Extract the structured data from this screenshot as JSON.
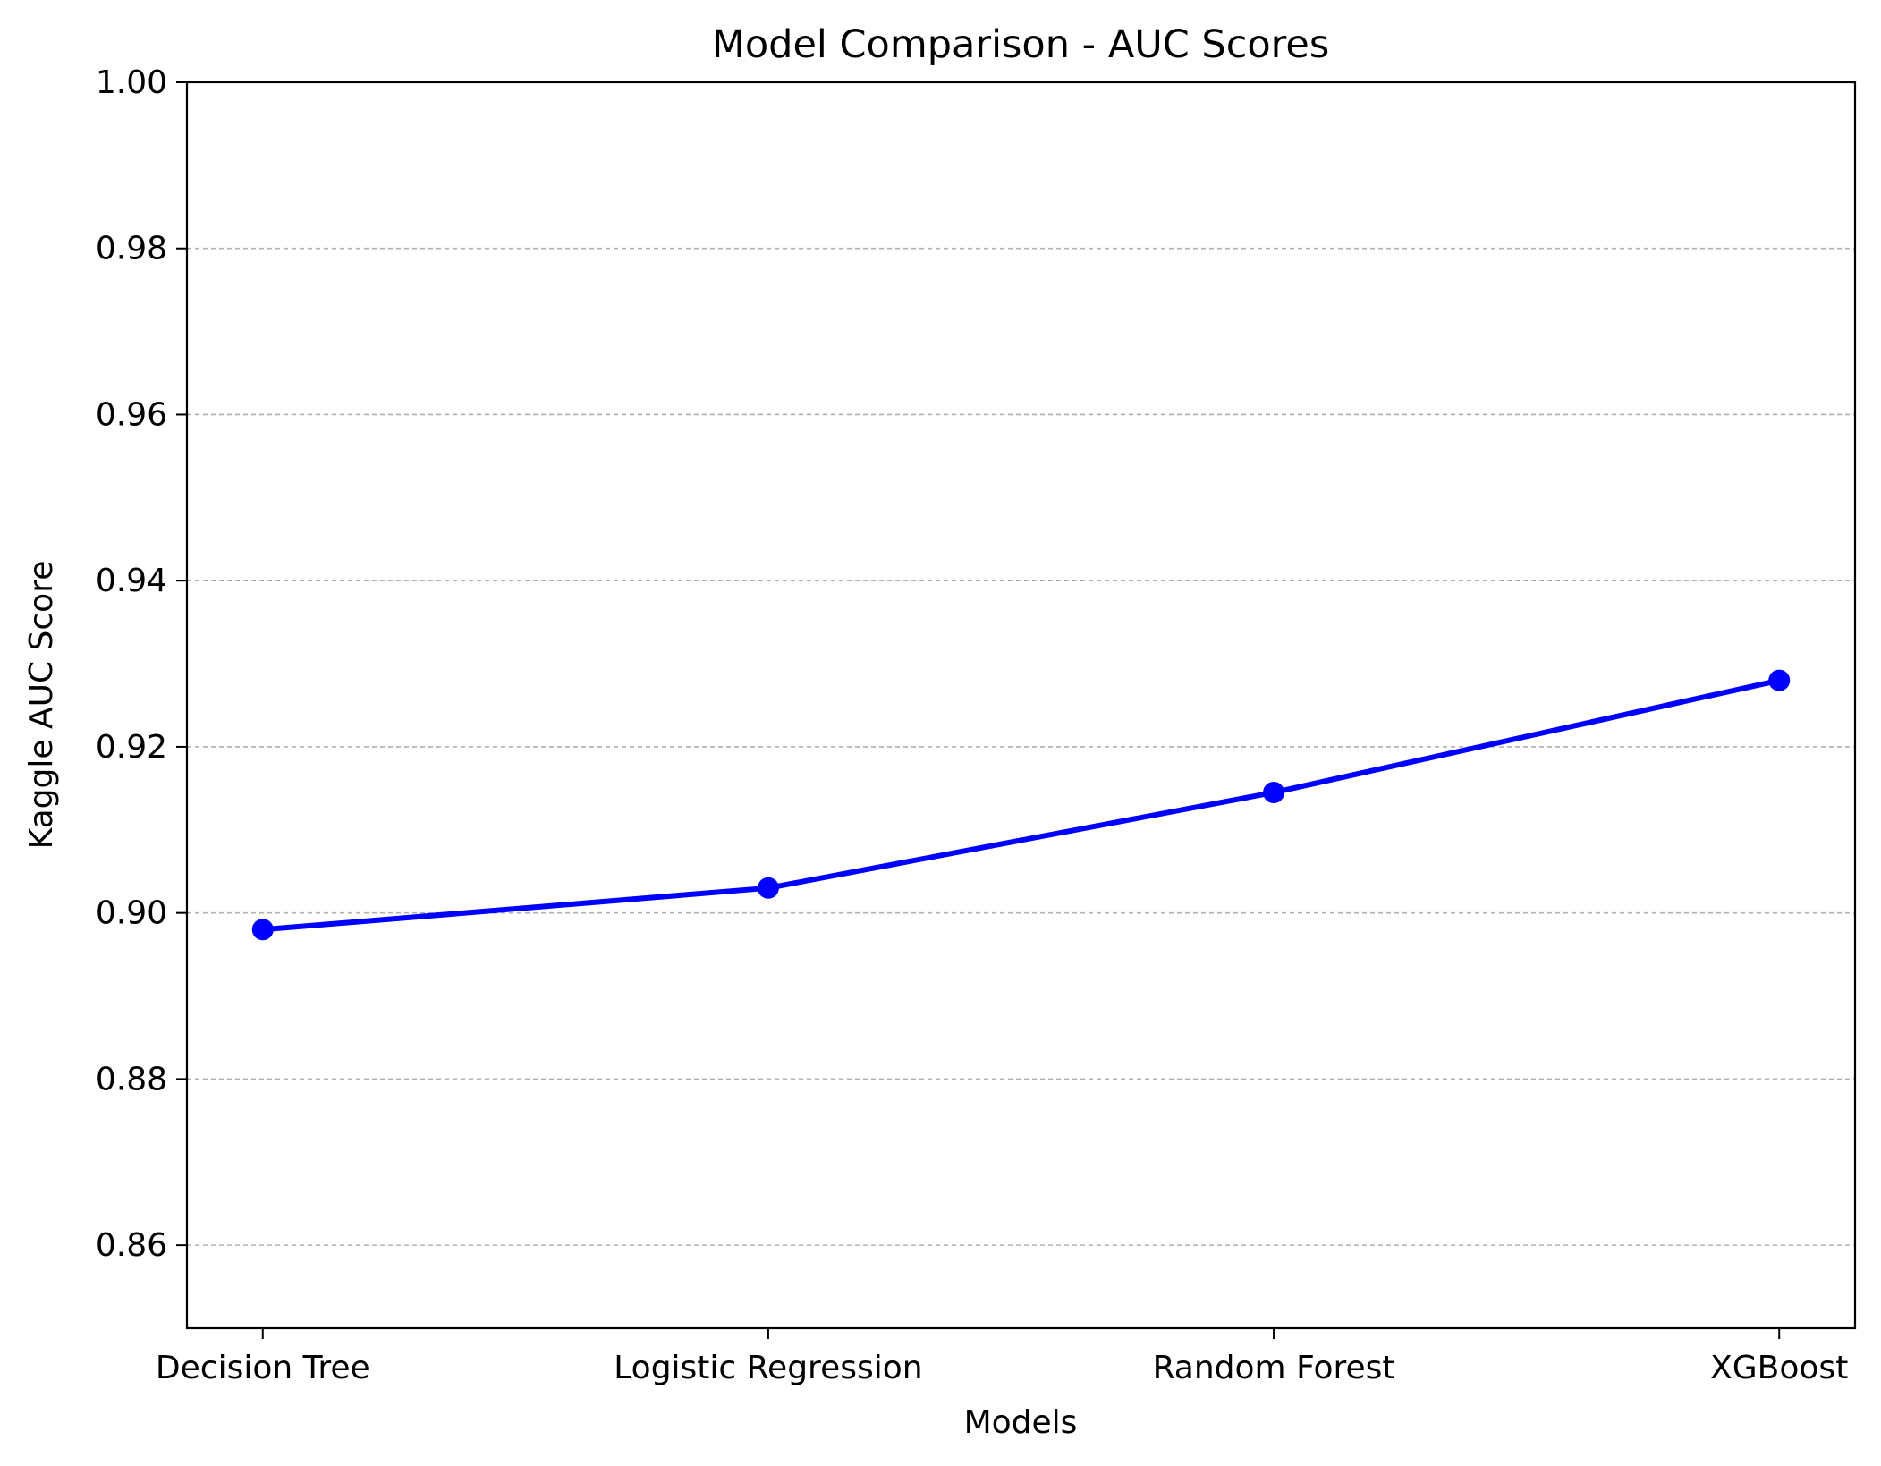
{
  "chart_data": {
    "type": "line",
    "title": "Model Comparison - AUC Scores",
    "xlabel": "Models",
    "ylabel": "Kaggle AUC Score",
    "categories": [
      "Decision Tree",
      "Logistic Regression",
      "Random Forest",
      "XGBoost"
    ],
    "series": [
      {
        "values": [
          0.898,
          0.903,
          0.9145,
          0.928
        ]
      }
    ],
    "ylim": [
      0.85,
      1.0
    ],
    "yticks": [
      0.86,
      0.88,
      0.9,
      0.92,
      0.94,
      0.96,
      0.98,
      1.0
    ],
    "ytick_labels": [
      "0.86",
      "0.88",
      "0.90",
      "0.92",
      "0.94",
      "0.96",
      "0.98",
      "1.00"
    ],
    "grid": {
      "axis": "y",
      "style": "dashed",
      "color": "#b0b0b0"
    },
    "line_color": "#0000ff",
    "marker": "circle",
    "legend": "none"
  }
}
